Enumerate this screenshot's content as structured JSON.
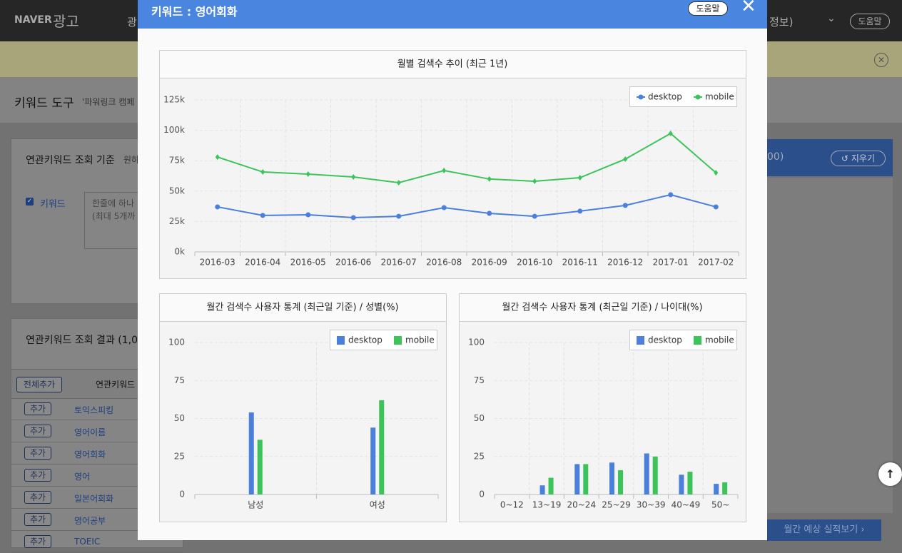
{
  "header": {
    "logo": "NAVER",
    "logo_sub": "광고",
    "menu_partial": "광",
    "info": "정보)",
    "help": "도움말"
  },
  "page": {
    "title": "키워드 도구",
    "subtitle": "'파워링크 캠페",
    "criteria": {
      "title": "연관키워드 조회 기준",
      "hint": "원하",
      "keyword_label": "키워드",
      "placeholder": [
        "한줄에 하나",
        "(최대 5개까"
      ]
    },
    "results": {
      "title": "연관키워드 조회 결과 (1,0",
      "add_all": "전체추가",
      "column": "연관키워드",
      "add": "추가",
      "rows": [
        "토익스피킹",
        "영어이름",
        "영어회화",
        "영어",
        "일본어회화",
        "영어공부",
        "TOEIC"
      ]
    },
    "right_panel": {
      "count": "00)",
      "clear": "지우기",
      "estimate": "월간 예상 실적보기 ›"
    }
  },
  "modal": {
    "title": "키워드 : 영어회화",
    "help": "도움말"
  },
  "chart_data": [
    {
      "type": "line",
      "title": "월별 검색수 추이 (최근 1년)",
      "categories": [
        "2016-03",
        "2016-04",
        "2016-05",
        "2016-06",
        "2016-07",
        "2016-08",
        "2016-09",
        "2016-10",
        "2016-11",
        "2016-12",
        "2017-01",
        "2017-02"
      ],
      "series": [
        {
          "name": "desktop",
          "color": "#4a7fdc",
          "values": [
            37000,
            30000,
            30500,
            28200,
            29300,
            36400,
            31700,
            29300,
            33500,
            38200,
            47000,
            37000
          ]
        },
        {
          "name": "mobile",
          "color": "#3cc45a",
          "values": [
            78000,
            65700,
            64000,
            61600,
            56900,
            66900,
            59900,
            58100,
            61000,
            76300,
            97400,
            65100
          ]
        }
      ],
      "ylim": [
        0,
        125000
      ],
      "yticks": [
        {
          "value": 0,
          "label": "0k"
        },
        {
          "value": 25000,
          "label": "25k"
        },
        {
          "value": 50000,
          "label": "50k"
        },
        {
          "value": 75000,
          "label": "75k"
        },
        {
          "value": 100000,
          "label": "100k"
        },
        {
          "value": 125000,
          "label": "125k"
        }
      ],
      "grid": true,
      "legend": "top-right"
    },
    {
      "type": "bar",
      "title": "월간 검색수 사용자 통계 (최근일 기준) / 성별(%)",
      "categories": [
        "남성",
        "여성"
      ],
      "series": [
        {
          "name": "desktop",
          "color": "#4a7fdc",
          "values": [
            54,
            44
          ]
        },
        {
          "name": "mobile",
          "color": "#3cc45a",
          "values": [
            36,
            62
          ]
        }
      ],
      "ylim": [
        0,
        100
      ],
      "yticks": [
        0,
        25,
        50,
        75,
        100
      ],
      "grid": true,
      "legend": "top-right"
    },
    {
      "type": "bar",
      "title": "월간 검색수 사용자 통계 (최근일 기준) / 나이대(%)",
      "categories": [
        "0~12",
        "13~19",
        "20~24",
        "25~29",
        "30~39",
        "40~49",
        "50~"
      ],
      "series": [
        {
          "name": "desktop",
          "color": "#4a7fdc",
          "values": [
            0,
            6,
            20,
            21,
            27,
            13,
            7
          ]
        },
        {
          "name": "mobile",
          "color": "#3cc45a",
          "values": [
            0,
            11,
            20,
            16,
            25,
            15,
            8
          ]
        }
      ],
      "ylim": [
        0,
        100
      ],
      "yticks": [
        0,
        25,
        50,
        75,
        100
      ],
      "grid": true,
      "legend": "top-right"
    }
  ]
}
